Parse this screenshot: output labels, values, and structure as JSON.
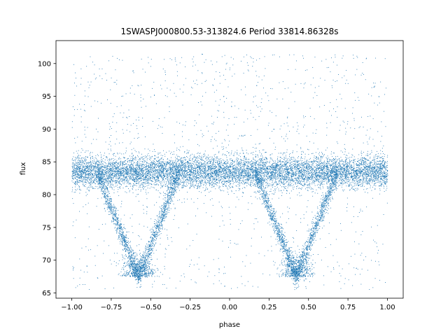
{
  "chart_data": {
    "type": "scatter",
    "title": "1SWASPJ000800.53-313824.6 Period 33814.86328s",
    "xlabel": "phase",
    "ylabel": "flux",
    "xlim": [
      -1.1,
      1.1
    ],
    "ylim": [
      64.2,
      103.5
    ],
    "x_ticks": [
      -1.0,
      -0.75,
      -0.5,
      -0.25,
      0.0,
      0.25,
      0.5,
      0.75,
      1.0
    ],
    "x_tick_labels": [
      "−1.00",
      "−0.75",
      "−0.50",
      "−0.25",
      "0.00",
      "0.25",
      "0.50",
      "0.75",
      "1.00"
    ],
    "y_ticks": [
      65,
      70,
      75,
      80,
      85,
      90,
      95,
      100
    ],
    "y_tick_labels": [
      "65",
      "70",
      "75",
      "80",
      "85",
      "90",
      "95",
      "100"
    ],
    "grid": false,
    "legend": "none",
    "marker_color": "#1f77b4",
    "baseline_flux": 83.5,
    "baseline_scatter": 1.2,
    "flux_range": [
      65.5,
      101.5
    ],
    "eclipses": [
      {
        "center_phase": -0.58,
        "minimum_flux": 67.5,
        "half_width": 0.26
      },
      {
        "center_phase": 0.42,
        "minimum_flux": 67.5,
        "half_width": 0.26
      }
    ]
  }
}
